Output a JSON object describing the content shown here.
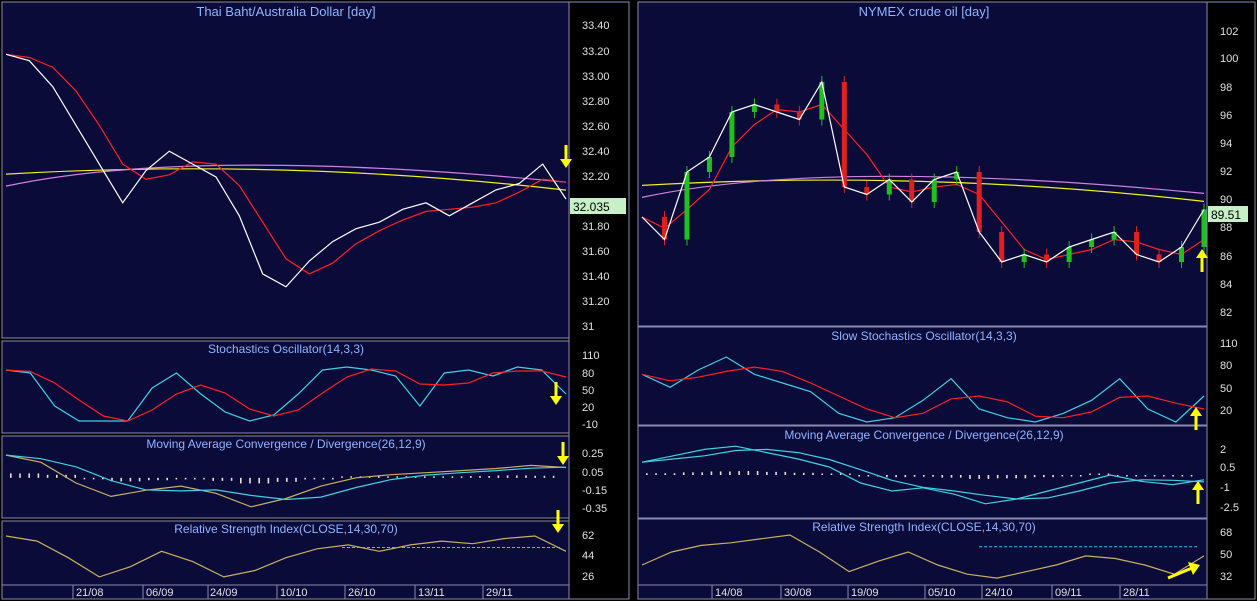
{
  "left": {
    "price": {
      "title": "Thai Baht/Australia Dollar [day]",
      "ticks": [
        "33.40",
        "33.20",
        "33.00",
        "32.80",
        "32.60",
        "32.40",
        "32.20",
        "31.80",
        "31.60",
        "31.40",
        "31.20",
        "31"
      ],
      "current": "32.035"
    },
    "stoch": {
      "title": "Stochastics Oscillator(14,3,3)",
      "ticks": [
        "110",
        "80",
        "50",
        "20",
        "-10"
      ]
    },
    "macd": {
      "title": "Moving Average Convergence / Divergence(26,12,9)",
      "ticks": [
        "0.25",
        "0.05",
        "-0.15",
        "-0.35"
      ]
    },
    "rsi": {
      "title": "Relative Strength Index(CLOSE,14,30,70)",
      "ticks": [
        "62",
        "44",
        "26"
      ]
    },
    "dates": [
      "21/08",
      "06/09",
      "24/09",
      "10/10",
      "26/10",
      "13/11",
      "29/11"
    ]
  },
  "right": {
    "price": {
      "title": "NYMEX crude oil [day]",
      "ticks": [
        "102",
        "100",
        "98",
        "96",
        "94",
        "92",
        "90",
        "88",
        "86",
        "84",
        "82"
      ],
      "current": "89.51"
    },
    "stoch": {
      "title": "Slow Stochastics Oscillator(14,3,3)",
      "ticks": [
        "110",
        "80",
        "50",
        "20"
      ]
    },
    "macd": {
      "title": "Moving Average Convergence / Divergence(26,12,9)",
      "ticks": [
        "2",
        "0.5",
        "-1",
        "-2.5"
      ]
    },
    "rsi": {
      "title": "Relative Strength Index(CLOSE,14,30,70)",
      "ticks": [
        "68",
        "50",
        "32"
      ]
    },
    "dates": [
      "14/08",
      "30/08",
      "19/09",
      "05/10",
      "24/10",
      "09/11",
      "28/11"
    ]
  },
  "colors": {
    "panel_bg": "#0b0b3a",
    "border": "#8a8ab0",
    "title": "#8fb4ff",
    "axis_text": "#e0e0e0",
    "close_line": "#ffffff",
    "fast_ma": "#ff2020",
    "mid_ma": "#40d0e0",
    "slow_ma": "#d080e0",
    "long_ma": "#f0f020",
    "up_candle": "#20c020",
    "down_candle": "#e02020",
    "rsi_line": "#c8b060",
    "ref_line": "#40c0ff",
    "arrow": "#ffff00",
    "current_badge": "#c8f0c8"
  },
  "chart_data": [
    {
      "type": "line",
      "title": "Thai Baht/Australia Dollar [day]",
      "x_ticks": [
        "21/08",
        "06/09",
        "24/09",
        "10/10",
        "26/10",
        "13/11",
        "29/11"
      ],
      "ylim": [
        31,
        33.4
      ],
      "series": [
        {
          "values": [
            33.15,
            33.1,
            32.9,
            32.6,
            32.3,
            32.0,
            32.25,
            32.4,
            32.3,
            32.2,
            31.9,
            31.45,
            31.35,
            31.55,
            31.7,
            31.8,
            31.85,
            31.95,
            32.0,
            31.9,
            32.0,
            32.1,
            32.15,
            32.3,
            32.03
          ]
        }
      ]
    },
    {
      "type": "line",
      "title": "Stochastics Oscillator(14,3,3)",
      "ylim": [
        -10,
        110
      ],
      "series": [
        {
          "values": [
            90,
            85,
            30,
            5,
            5,
            5,
            60,
            85,
            50,
            20,
            5,
            15,
            50,
            90,
            95,
            90,
            80,
            30,
            85,
            90,
            80,
            95,
            90,
            50
          ]
        }
      ]
    },
    {
      "type": "line",
      "title": "Moving Average Convergence / Divergence(26,12,9)",
      "ylim": [
        -0.35,
        0.25
      ],
      "series": [
        {
          "values": [
            0.22,
            0.15,
            -0.05,
            -0.18,
            -0.12,
            -0.08,
            -0.15,
            -0.28,
            -0.2,
            -0.08,
            0.0,
            0.03,
            0.05,
            0.07,
            0.09,
            0.12,
            0.1
          ]
        }
      ]
    },
    {
      "type": "line",
      "title": "Relative Strength Index(CLOSE,14,30,70)",
      "ylim": [
        26,
        62
      ],
      "series": [
        {
          "values": [
            62,
            58,
            45,
            30,
            38,
            50,
            42,
            30,
            35,
            45,
            52,
            55,
            50,
            55,
            58,
            56,
            60,
            62,
            50
          ]
        }
      ]
    },
    {
      "type": "line",
      "title": "NYMEX crude oil [day]",
      "x_ticks": [
        "14/08",
        "30/08",
        "19/09",
        "05/10",
        "24/10",
        "09/11",
        "28/11"
      ],
      "ylim": [
        82,
        102
      ],
      "series": [
        {
          "values": [
            89,
            87.5,
            92,
            93,
            96,
            96.5,
            96,
            95.5,
            98,
            91,
            90.5,
            91.5,
            90,
            91.5,
            92,
            88,
            86,
            86.5,
            86,
            87,
            87.5,
            88,
            86.5,
            86,
            87,
            89.5
          ]
        }
      ]
    },
    {
      "type": "line",
      "title": "Slow Stochastics Oscillator(14,3,3)",
      "ylim": [
        20,
        110
      ],
      "series": [
        {
          "values": [
            75,
            60,
            80,
            95,
            75,
            65,
            55,
            30,
            20,
            25,
            45,
            70,
            35,
            25,
            20,
            30,
            45,
            70,
            35,
            20,
            50
          ]
        }
      ]
    },
    {
      "type": "line",
      "title": "Moving Average Convergence / Divergence(26,12,9)",
      "ylim": [
        -2.5,
        2
      ],
      "series": [
        {
          "values": [
            0.8,
            1.2,
            1.6,
            1.8,
            1.4,
            1.0,
            0.5,
            -0.5,
            -1.0,
            -0.8,
            -1.2,
            -1.8,
            -1.5,
            -1.0,
            -0.5,
            0.0,
            -0.4,
            -0.6,
            -0.3
          ]
        }
      ]
    },
    {
      "type": "line",
      "title": "Relative Strength Index(CLOSE,14,30,70)",
      "ylim": [
        32,
        68
      ],
      "series": [
        {
          "values": [
            45,
            55,
            60,
            62,
            65,
            68,
            55,
            40,
            48,
            55,
            45,
            38,
            35,
            40,
            45,
            52,
            50,
            45,
            38,
            52
          ]
        }
      ]
    }
  ]
}
